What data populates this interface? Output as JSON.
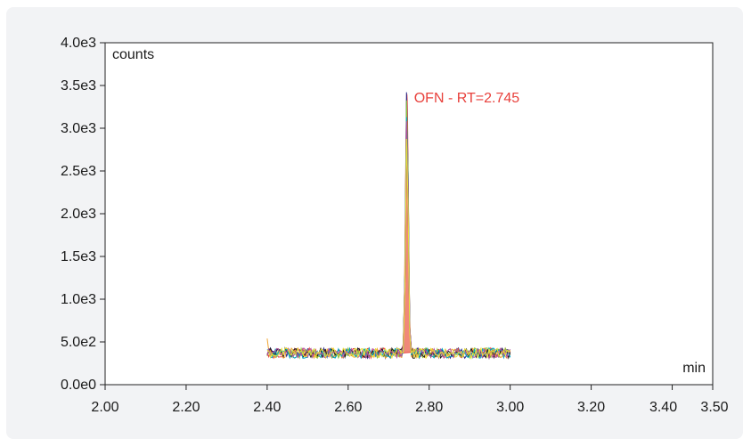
{
  "chart_data": {
    "type": "line",
    "xlabel": "min",
    "ylabel": "counts",
    "xlim": [
      2.0,
      3.5
    ],
    "ylim": [
      0,
      4000
    ],
    "x_ticks": [
      {
        "value": 2.0,
        "label": "2.00"
      },
      {
        "value": 2.2,
        "label": "2.20"
      },
      {
        "value": 2.4,
        "label": "2.40"
      },
      {
        "value": 2.6,
        "label": "2.60"
      },
      {
        "value": 2.8,
        "label": "2.80"
      },
      {
        "value": 3.0,
        "label": "3.00"
      },
      {
        "value": 3.2,
        "label": "3.20"
      },
      {
        "value": 3.4,
        "label": "3.40"
      },
      {
        "value": 3.5,
        "label": "3.50"
      }
    ],
    "y_ticks": [
      {
        "value": 0,
        "label": "0.0e0"
      },
      {
        "value": 500,
        "label": "5.0e2"
      },
      {
        "value": 1000,
        "label": "1.0e3"
      },
      {
        "value": 1500,
        "label": "1.5e3"
      },
      {
        "value": 2000,
        "label": "2.0e3"
      },
      {
        "value": 2500,
        "label": "2.5e3"
      },
      {
        "value": 3000,
        "label": "3.0e3"
      },
      {
        "value": 3500,
        "label": "3.5e3"
      },
      {
        "value": 4000,
        "label": "4.0e3"
      }
    ],
    "grid": false,
    "x_range_traces": [
      2.4,
      3.0
    ],
    "baseline": 370,
    "noise_amplitude": 60,
    "peak": {
      "label": "OFN - RT=2.745",
      "rt": 2.745,
      "height": 3550,
      "filled_height": 3400,
      "width": 0.012,
      "color": "#e8413c",
      "fill": "#f0887a"
    },
    "series_colors": [
      "#2b2b8c",
      "#e8413c",
      "#f2a531",
      "#8dc63f",
      "#1a1a1a",
      "#00a3c4",
      "#b44fa0",
      "#e8e03a"
    ]
  }
}
